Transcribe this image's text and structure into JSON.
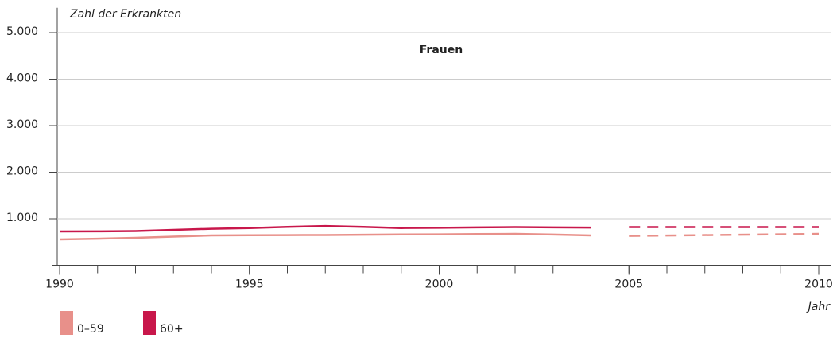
{
  "chart_data": {
    "type": "line",
    "title": "Frauen",
    "y_label": "Zahl der Erkrankten",
    "x_label": "Jahr",
    "x": [
      1990,
      1991,
      1992,
      1993,
      1994,
      1995,
      1996,
      1997,
      1998,
      1999,
      2000,
      2001,
      2002,
      2003,
      2004,
      2005,
      2010
    ],
    "projection_from": 2005,
    "series": [
      {
        "name": "0–59",
        "color": "#e8908a",
        "values": [
          555,
          570,
          590,
          615,
          640,
          645,
          648,
          650,
          655,
          662,
          665,
          670,
          675,
          660,
          640,
          630,
          675
        ]
      },
      {
        "name": "60+",
        "color": "#c8174b",
        "values": [
          726,
          728,
          735,
          760,
          785,
          800,
          825,
          845,
          825,
          800,
          805,
          815,
          820,
          815,
          810,
          820,
          820
        ]
      }
    ],
    "xlim": [
      1990,
      2010
    ],
    "xticks": [
      1990,
      1995,
      2000,
      2005,
      2010
    ],
    "x_minor_step": 1,
    "ylim": [
      0,
      5500
    ],
    "yticks": [
      {
        "value": 1000,
        "label": "1.000"
      },
      {
        "value": 2000,
        "label": "2.000"
      },
      {
        "value": 3000,
        "label": "3.000"
      },
      {
        "value": 4000,
        "label": "4.000"
      },
      {
        "value": 5000,
        "label": "5.000"
      }
    ],
    "grid": true
  }
}
